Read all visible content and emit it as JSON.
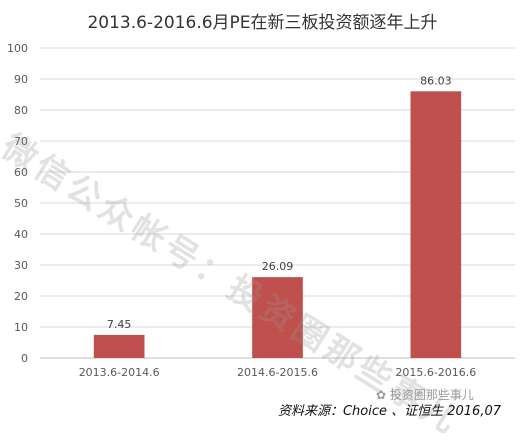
{
  "chart_data": {
    "type": "bar",
    "title": "2013.6-2016.6月PE在新三板投资额逐年上升",
    "categories": [
      "2013.6-2014.6",
      "2014.6-2015.6",
      "2015.6-2016.6"
    ],
    "values": [
      7.45,
      26.09,
      86.03
    ],
    "data_labels": [
      "7.45",
      "26.09",
      "86.03"
    ],
    "ylim": [
      0,
      100
    ],
    "yticks": [
      0,
      10,
      20,
      30,
      40,
      50,
      60,
      70,
      80,
      90,
      100
    ],
    "grid": true,
    "legend": "none",
    "bar_color": "#c0504d"
  },
  "source": "资料来源：Choice 、证恒生 2016,07",
  "watermark": {
    "diagonal": "微信公众帐号：投资圈那些事儿",
    "handle": "投资圈那些事儿"
  }
}
